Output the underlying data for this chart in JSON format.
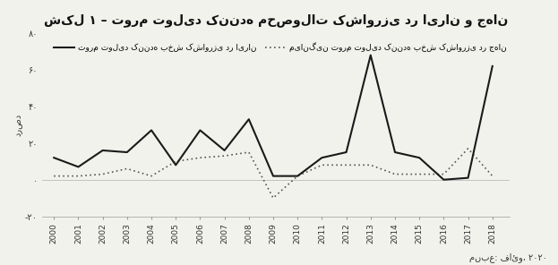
{
  "years": [
    2000,
    2001,
    2002,
    2003,
    2004,
    2005,
    2006,
    2007,
    2008,
    2009,
    2010,
    2011,
    2012,
    2013,
    2014,
    2015,
    2016,
    2017,
    2018
  ],
  "iran": [
    12,
    7,
    16,
    15,
    27,
    8,
    27,
    16,
    33,
    2,
    2,
    12,
    15,
    68,
    15,
    12,
    0,
    1,
    62
  ],
  "world": [
    2,
    2,
    3,
    6,
    2,
    10,
    12,
    13,
    15,
    -10,
    2,
    8,
    8,
    8,
    3,
    3,
    3,
    17,
    2
  ],
  "title": "شکل ۱ – تورم تولید کننده محصولات کشاورزی در ایران و جهان",
  "ylabel": "درصد",
  "legend_iran": "تورم تولید کننده بخش کشاورزی در ایران",
  "legend_world": "میانگین تورم تولید کننده بخش کشاورزی در جهان",
  "source": "منبع: فائو، ۲۰۲۰",
  "ylim": [
    -20,
    80
  ],
  "yticks": [
    -20,
    0,
    20,
    40,
    60,
    80
  ],
  "ytick_labels": [
    "-۲۰",
    "۰",
    "۲۰",
    "۴۰",
    "۶۰",
    "۸۰"
  ],
  "background_color": "#f2f2ed",
  "line_color_iran": "#1a1a1a",
  "line_color_world": "#555555"
}
